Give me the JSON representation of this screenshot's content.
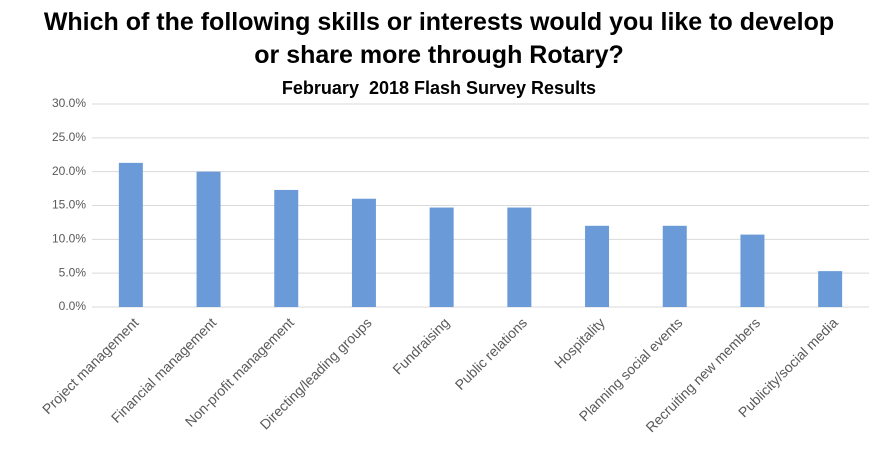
{
  "chart_data": {
    "type": "bar",
    "title": "Which of the following skills or interests would you like to develop or share more through Rotary?",
    "subtitle": "February  2018 Flash Survey Results",
    "categories": [
      "Project management",
      "Financial management",
      "Non-profit management",
      "Directing/leading groups",
      "Fundraising",
      "Public relations",
      "Hospitality",
      "Planning social events",
      "Recruiting new members",
      "Publicity/social media"
    ],
    "values": [
      21.3,
      20.0,
      17.3,
      16.0,
      14.7,
      14.7,
      12.0,
      12.0,
      10.7,
      5.3
    ],
    "color": "#6a9bd8",
    "ylim": [
      0,
      30
    ],
    "yticks": [
      {
        "value": 0,
        "label": "0.0%"
      },
      {
        "value": 5,
        "label": "5.0%"
      },
      {
        "value": 10,
        "label": "10.0%"
      },
      {
        "value": 15,
        "label": "15.0%"
      },
      {
        "value": 20,
        "label": "20.0%"
      },
      {
        "value": 25,
        "label": "25.0%"
      },
      {
        "value": 30,
        "label": "30.0%"
      }
    ],
    "grid": true
  }
}
